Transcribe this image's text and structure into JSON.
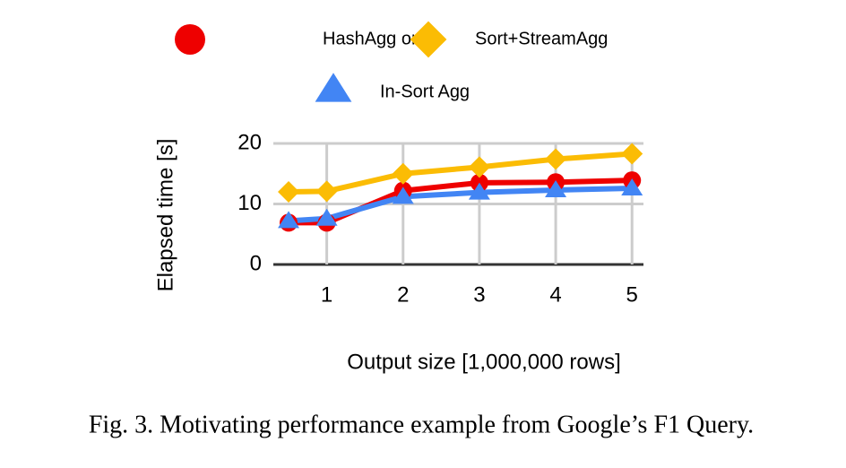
{
  "chart_data": {
    "type": "line",
    "caption": "Fig. 3.  Motivating performance example from Google’s F1 Query.",
    "xlabel": "Output size [1,000,000 rows]",
    "ylabel": "Elapsed time [s]",
    "x": [
      0.5,
      1,
      2,
      3,
      4,
      5
    ],
    "series": [
      {
        "name": "HashAgg only",
        "color": "#ee0000",
        "marker": "circle",
        "values": [
          6.9,
          6.9,
          12.2,
          13.5,
          13.6,
          13.9
        ]
      },
      {
        "name": "Sort+StreamAgg",
        "color": "#fbbc04",
        "marker": "diamond",
        "values": [
          12.0,
          12.1,
          15.0,
          16.1,
          17.4,
          18.3
        ]
      },
      {
        "name": "In-Sort Agg",
        "color": "#4285f4",
        "marker": "triangle",
        "values": [
          7.2,
          7.6,
          11.2,
          11.9,
          12.3,
          12.6
        ]
      }
    ],
    "xlim": [
      0.3,
      5.15
    ],
    "xticks": [
      1,
      2,
      3,
      4,
      5
    ],
    "ylim": [
      0,
      20
    ],
    "yticks": [
      0,
      10,
      20
    ],
    "grid": true
  }
}
